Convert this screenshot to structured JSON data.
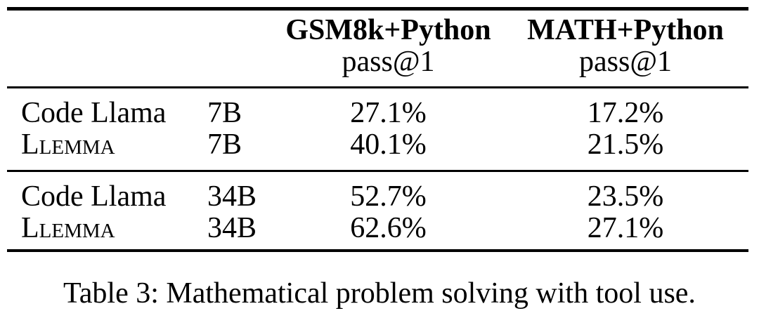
{
  "table": {
    "columns": [
      {
        "title": "GSM8k+Python",
        "subtitle": "pass@1"
      },
      {
        "title": "MATH+Python",
        "subtitle": "pass@1"
      }
    ],
    "sections": [
      {
        "rows": [
          {
            "model": "Code Llama",
            "size": "7B",
            "gsm8k_pass1": "27.1%",
            "math_pass1": "17.2%"
          },
          {
            "model": "Llemma",
            "size": "7B",
            "gsm8k_pass1": "40.1%",
            "math_pass1": "21.5%"
          }
        ]
      },
      {
        "rows": [
          {
            "model": "Code Llama",
            "size": "34B",
            "gsm8k_pass1": "52.7%",
            "math_pass1": "23.5%"
          },
          {
            "model": "Llemma",
            "size": "34B",
            "gsm8k_pass1": "62.6%",
            "math_pass1": "27.1%"
          }
        ]
      }
    ],
    "caption": "Table 3: Mathematical problem solving with tool use."
  },
  "colors": {
    "text": "#000000",
    "background": "#ffffff",
    "rule": "#000000"
  }
}
